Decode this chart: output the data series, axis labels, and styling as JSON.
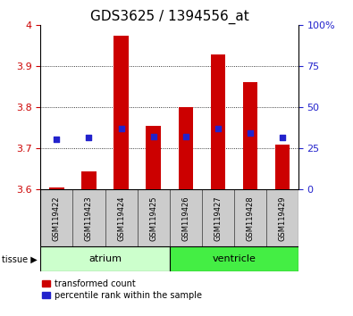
{
  "title": "GDS3625 / 1394556_at",
  "samples": [
    "GSM119422",
    "GSM119423",
    "GSM119424",
    "GSM119425",
    "GSM119426",
    "GSM119427",
    "GSM119428",
    "GSM119429"
  ],
  "bar_bottom": 3.6,
  "red_tops": [
    3.605,
    3.645,
    3.975,
    3.755,
    3.8,
    3.93,
    3.862,
    3.71
  ],
  "blue_y": [
    3.723,
    3.727,
    3.748,
    3.728,
    3.73,
    3.748,
    3.737,
    3.726
  ],
  "ylim_left": [
    3.6,
    4.0
  ],
  "ylim_right": [
    0,
    100
  ],
  "yticks_left": [
    3.6,
    3.7,
    3.8,
    3.9,
    4.0
  ],
  "yticks_right": [
    0,
    25,
    50,
    75,
    100
  ],
  "ytick_labels_left": [
    "3.6",
    "3.7",
    "3.8",
    "3.9",
    "4"
  ],
  "ytick_labels_right": [
    "0",
    "25",
    "50",
    "75",
    "100%"
  ],
  "grid_yticks": [
    3.7,
    3.8,
    3.9
  ],
  "bar_color": "#cc0000",
  "blue_color": "#2222cc",
  "atrium_color": "#ccffcc",
  "ventricle_color": "#44ee44",
  "label_box_color": "#cccccc",
  "title_fontsize": 11,
  "tick_fontsize": 8,
  "label_fontsize": 6,
  "tissue_fontsize": 8,
  "legend_fontsize": 7
}
